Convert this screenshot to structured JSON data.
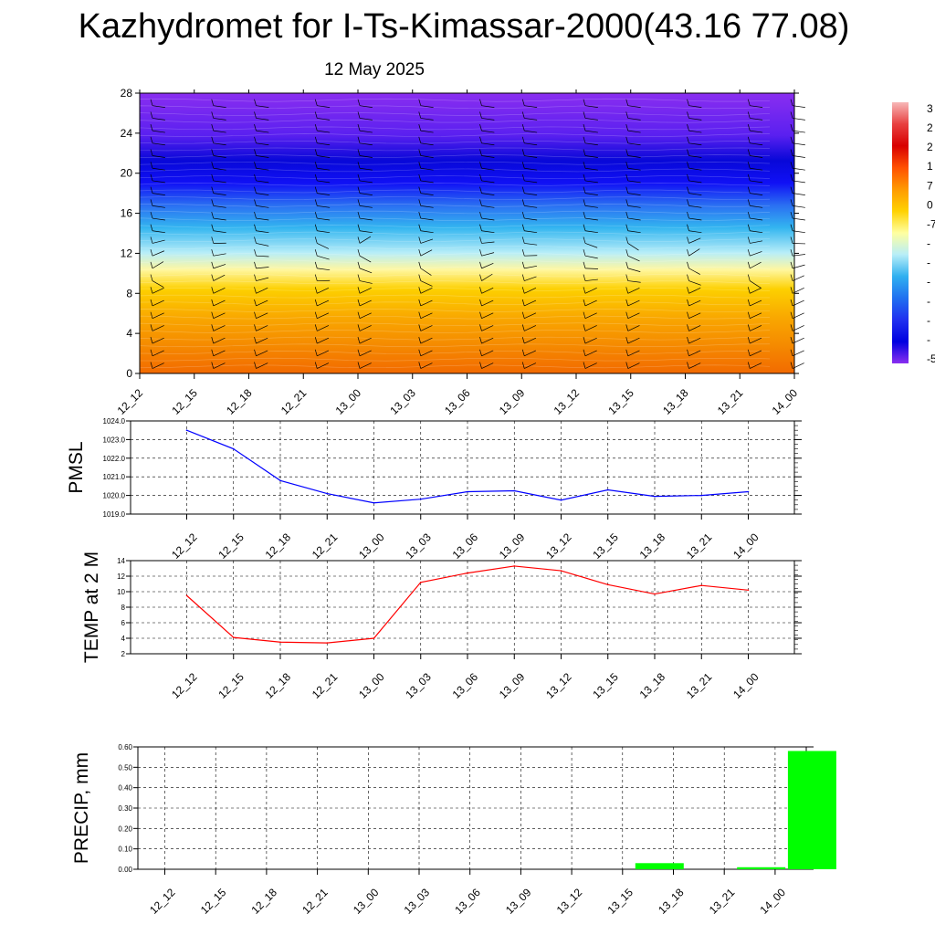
{
  "title": "Kazhydromet for I-Ts-Kimassar-2000(43.16 77.08)",
  "subtitle": "12 May 2025",
  "colorbar_labels": [
    "3",
    "2",
    "2",
    "1",
    "7",
    "0",
    "-7",
    "-",
    "-",
    "-",
    "-",
    "-",
    "-",
    "-5"
  ],
  "colors": {
    "cross_section": [
      "#f26a00",
      "#f58a00",
      "#f9a800",
      "#fdd000",
      "#fff7a0",
      "#b8eef8",
      "#33b5f0",
      "#2a6ff2",
      "#1010f5",
      "#0808d8",
      "#5a20f0",
      "#8a2ef0"
    ],
    "pmsl_line": "#0000ff",
    "temp_line": "#ff0000",
    "precip_bar": "#00ff00"
  },
  "chart_data": [
    {
      "type": "heatmap",
      "description_of_marks": "vertical cross-section colour field with wind barbs",
      "categories": [
        "12_12",
        "12_15",
        "12_18",
        "12_21",
        "13_00",
        "13_03",
        "13_06",
        "13_09",
        "13_12",
        "13_15",
        "13_18",
        "13_21",
        "14_00"
      ],
      "ylim": [
        0,
        28
      ],
      "yticks": [
        "0",
        "4",
        "8",
        "12",
        "16",
        "20",
        "24",
        "28"
      ]
    },
    {
      "type": "line",
      "ylabel": "PMSL",
      "categories": [
        "12_12",
        "12_15",
        "12_18",
        "12_21",
        "13_00",
        "13_03",
        "13_06",
        "13_09",
        "13_12",
        "13_15",
        "13_18",
        "13_21",
        "14_00"
      ],
      "values": [
        1023.5,
        1022.5,
        1020.8,
        1020.1,
        1019.6,
        1019.8,
        1020.2,
        1020.25,
        1019.75,
        1020.3,
        1019.95,
        1020.0,
        1020.2
      ],
      "ylim": [
        1019.0,
        1024.0
      ],
      "yticks": [
        "1019.0",
        "1020.0",
        "1021.0",
        "1022.0",
        "1023.0",
        "1024.0"
      ]
    },
    {
      "type": "line",
      "ylabel": "TEMP at 2 M",
      "categories": [
        "12_12",
        "12_15",
        "12_18",
        "12_21",
        "13_00",
        "13_03",
        "13_06",
        "13_09",
        "13_12",
        "13_15",
        "13_18",
        "13_21",
        "14_00"
      ],
      "values": [
        9.5,
        4.1,
        3.5,
        3.4,
        4.0,
        11.2,
        12.4,
        13.3,
        12.7,
        10.9,
        9.7,
        10.8,
        10.2
      ],
      "ylim": [
        2,
        14
      ],
      "yticks": [
        "2",
        "4",
        "6",
        "8",
        "10",
        "12",
        "14"
      ]
    },
    {
      "type": "bar",
      "ylabel": "PRECIP, mm",
      "categories": [
        "12_12",
        "12_15",
        "12_18",
        "12_21",
        "13_00",
        "13_03",
        "13_06",
        "13_09",
        "13_12",
        "13_15",
        "13_18",
        "13_21",
        "14_00"
      ],
      "values": [
        0,
        0,
        0,
        0,
        0,
        0,
        0,
        0,
        0,
        0.03,
        0,
        0.01,
        0.58
      ],
      "ylim": [
        0,
        0.6
      ],
      "yticks": [
        "0.00",
        "0.10",
        "0.20",
        "0.30",
        "0.40",
        "0.50",
        "0.60"
      ]
    }
  ]
}
